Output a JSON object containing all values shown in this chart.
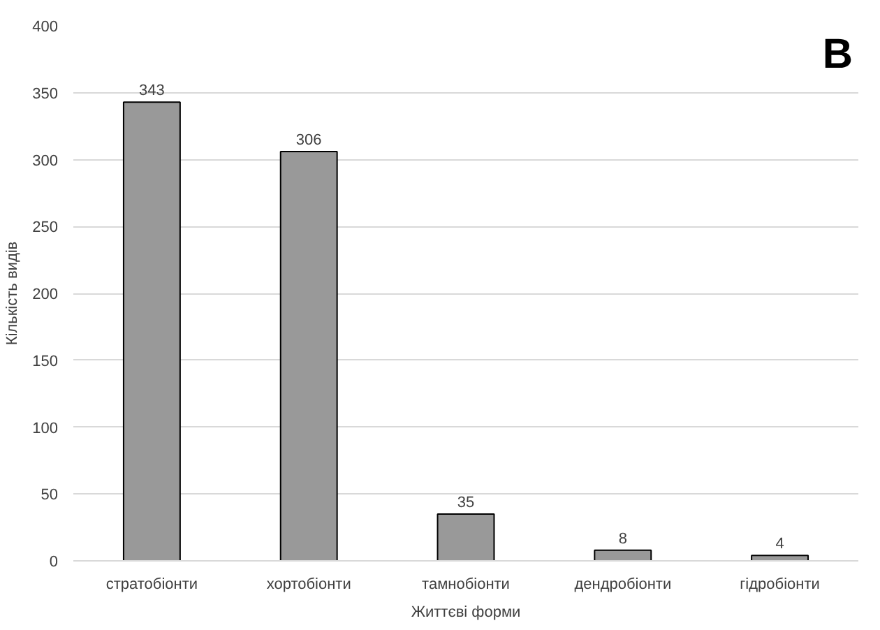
{
  "chart_data": {
    "type": "bar",
    "xlabel": "Життєві форми",
    "ylabel": "Кількість видів",
    "categories": [
      "стратобіонти",
      "хортобіонти",
      "тамнобіонти",
      "дендробіонти",
      "гідробіонти"
    ],
    "values": [
      343,
      306,
      35,
      8,
      4
    ],
    "color": "#999999",
    "ylim": [
      0,
      400
    ],
    "yticks": [
      0,
      50,
      100,
      150,
      200,
      250,
      300,
      350,
      400
    ],
    "grid": "y",
    "data_labels": true,
    "annotations": [
      "B"
    ]
  }
}
